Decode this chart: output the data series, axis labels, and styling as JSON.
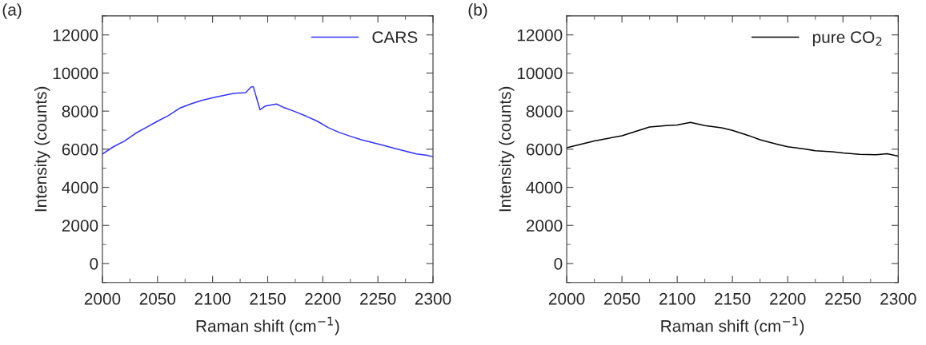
{
  "chart_data": [
    {
      "type": "line",
      "xlabel": "Raman shift (cm$^{−1}$)",
      "ylabel": "Intensity (counts)",
      "annotations": [
        "(a)"
      ],
      "x": [
        2000,
        2010,
        2020,
        2030,
        2040,
        2050,
        2060,
        2070,
        2080,
        2090,
        2100,
        2110,
        2120,
        2130,
        2135,
        2137,
        2143,
        2148,
        2158,
        2165,
        2175,
        2185,
        2195,
        2205,
        2215,
        2225,
        2235,
        2245,
        2255,
        2265,
        2275,
        2285,
        2295,
        2300
      ],
      "series": [
        {
          "name": "CARS",
          "color": "#3333ff",
          "values": [
            5750,
            6130,
            6430,
            6830,
            7150,
            7470,
            7770,
            8150,
            8370,
            8560,
            8700,
            8820,
            8940,
            8970,
            9270,
            9270,
            8070,
            8270,
            8370,
            8180,
            7970,
            7730,
            7470,
            7130,
            6880,
            6680,
            6500,
            6350,
            6200,
            6050,
            5900,
            5750,
            5680,
            5600
          ]
        }
      ],
      "xlim": [
        2000,
        2300
      ],
      "xticks": [
        2000,
        2050,
        2100,
        2150,
        2200,
        2250,
        2300
      ],
      "ylim": [
        -1000,
        13000
      ],
      "yticks": [
        0,
        2000,
        4000,
        6000,
        8000,
        10000,
        12000
      ],
      "legend": "top right",
      "grid": false
    },
    {
      "type": "line",
      "xlabel": "Raman shift (cm$^{−1}$)",
      "ylabel": "Intensity (counts)",
      "annotations": [
        "(b)"
      ],
      "x": [
        2000,
        2025,
        2050,
        2075,
        2090,
        2100,
        2112,
        2125,
        2140,
        2150,
        2165,
        2175,
        2190,
        2200,
        2215,
        2225,
        2240,
        2250,
        2265,
        2280,
        2290,
        2300
      ],
      "series": [
        {
          "name": "pure CO$_{2}$",
          "color": "#000000",
          "values": [
            6080,
            6430,
            6710,
            7170,
            7240,
            7270,
            7410,
            7240,
            7130,
            6990,
            6710,
            6500,
            6270,
            6130,
            6010,
            5920,
            5870,
            5800,
            5730,
            5710,
            5760,
            5640
          ]
        }
      ],
      "xlim": [
        2000,
        2300
      ],
      "xticks": [
        2000,
        2050,
        2100,
        2150,
        2200,
        2250,
        2300
      ],
      "ylim": [
        -1000,
        13000
      ],
      "yticks": [
        0,
        2000,
        4000,
        6000,
        8000,
        10000,
        12000
      ],
      "legend": "top right",
      "grid": false
    }
  ]
}
